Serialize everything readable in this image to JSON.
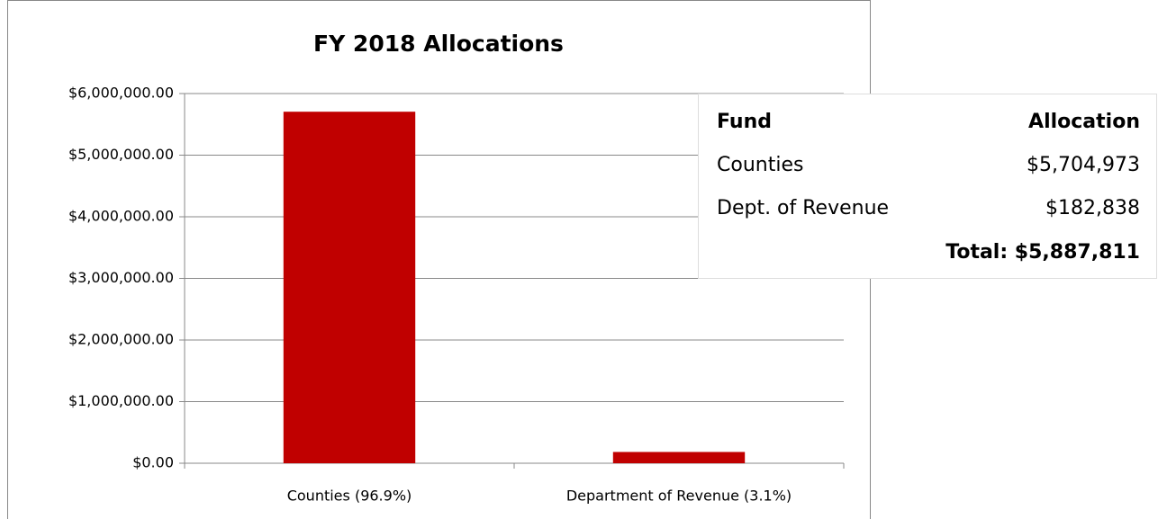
{
  "chart_data": {
    "type": "bar",
    "title": "FY 2018 Allocations",
    "categories": [
      "Counties (96.9%)",
      "Department of Revenue (3.1%)"
    ],
    "values": [
      5704973,
      182838
    ],
    "color": "#c00000",
    "ylim": [
      0,
      6000000
    ],
    "yticks": [
      {
        "value": 0,
        "label": "$0.00"
      },
      {
        "value": 1000000,
        "label": "$1,000,000.00"
      },
      {
        "value": 2000000,
        "label": "$2,000,000.00"
      },
      {
        "value": 3000000,
        "label": "$3,000,000.00"
      },
      {
        "value": 4000000,
        "label": "$4,000,000.00"
      },
      {
        "value": 5000000,
        "label": "$5,000,000.00"
      },
      {
        "value": 6000000,
        "label": "$6,000,000.00"
      }
    ],
    "grid": true
  },
  "table": {
    "header": [
      "Fund",
      "Allocation"
    ],
    "rows": [
      [
        "Counties",
        "$5,704,973"
      ],
      [
        "Dept. of Revenue",
        "$182,838"
      ]
    ],
    "total": "Total: $5,887,811"
  }
}
